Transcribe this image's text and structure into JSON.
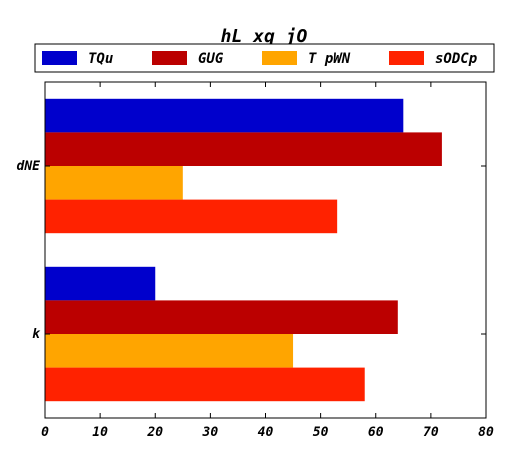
{
  "chart_data": {
    "type": "bar",
    "orientation": "horizontal",
    "title": "hL xq jO",
    "xlabel": "",
    "ylabel": "",
    "categories": [
      "dNE",
      "k"
    ],
    "series": [
      {
        "name": "TQu",
        "color": "#0000cc",
        "values": [
          65,
          20
        ]
      },
      {
        "name": "GUG",
        "color": "#bb0000",
        "values": [
          72,
          64
        ]
      },
      {
        "name": "T pWN",
        "color": "#ffa500",
        "values": [
          25,
          45
        ]
      },
      {
        "name": "sODCp",
        "color": "#ff2200",
        "values": [
          53,
          58
        ]
      }
    ],
    "xlim": [
      0,
      80
    ],
    "xticks": [
      0,
      10,
      20,
      30,
      40,
      50,
      60,
      70,
      80
    ],
    "grid": false,
    "legend_position": "top"
  }
}
